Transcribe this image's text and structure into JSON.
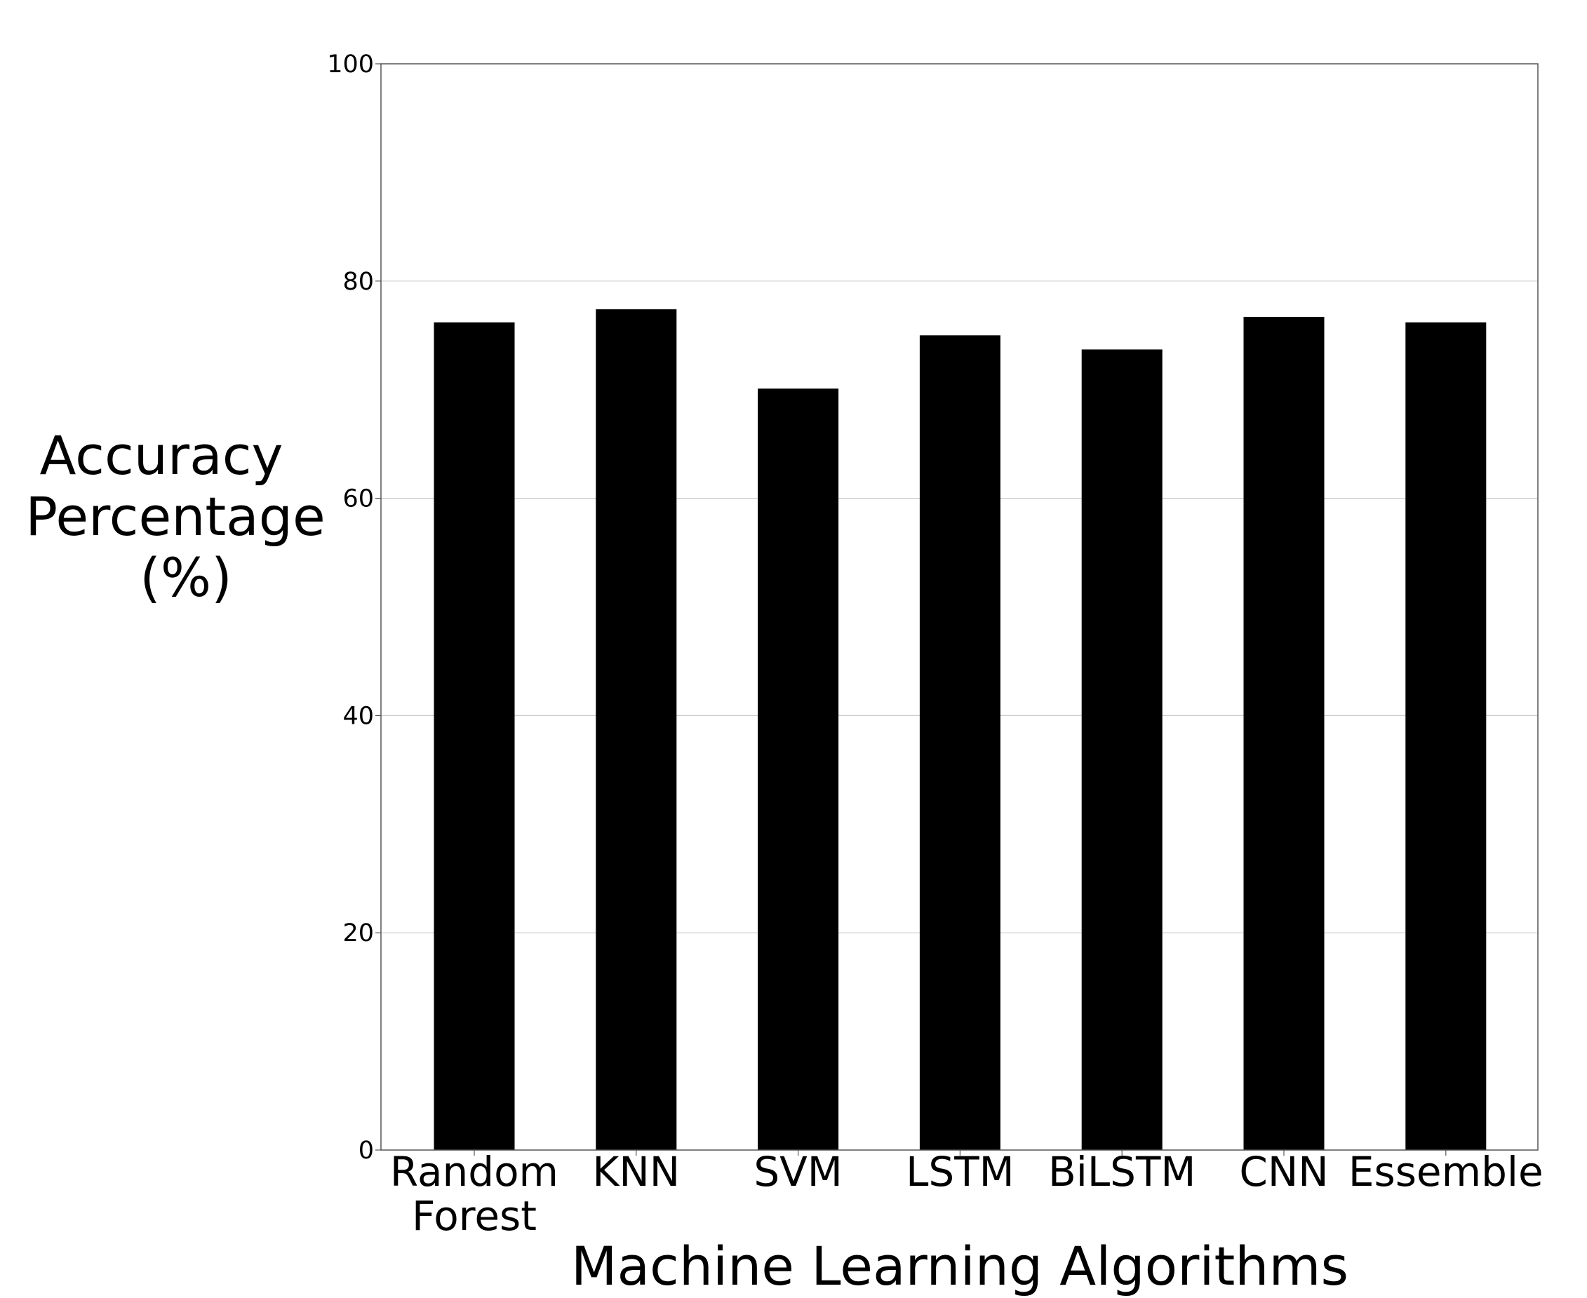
{
  "chart_data": {
    "type": "bar",
    "title": "",
    "xlabel": "Machine Learning Algorithms",
    "ylabel_lines": [
      "Accuracy",
      "Percentage",
      "(%)"
    ],
    "categories": [
      [
        "Random",
        "Forest"
      ],
      [
        "KNN"
      ],
      [
        "SVM"
      ],
      [
        "LSTM"
      ],
      [
        "BiLSTM"
      ],
      [
        "CNN"
      ],
      [
        "Essemble"
      ]
    ],
    "values": [
      76.2,
      77.4,
      70.1,
      75.0,
      73.7,
      76.7,
      76.2
    ],
    "ylim": [
      0,
      100
    ],
    "yticks": [
      0,
      20,
      40,
      60,
      80,
      100
    ],
    "grid": true,
    "bar_color": "#000000",
    "grid_color": "#cccccc",
    "axes_color": "#555555"
  }
}
